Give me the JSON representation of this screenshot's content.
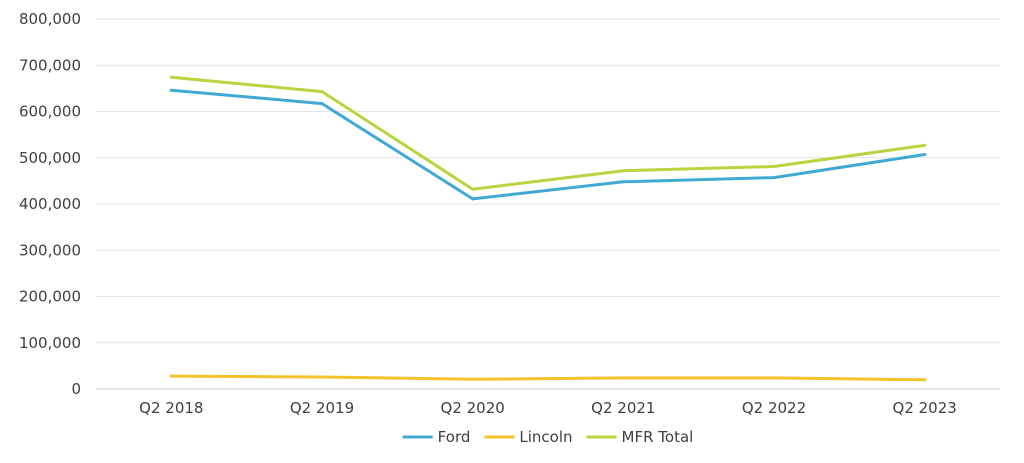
{
  "chart_data": {
    "type": "line",
    "categories": [
      "Q2 2018",
      "Q2 2019",
      "Q2 2020",
      "Q2 2021",
      "Q2 2022",
      "Q2 2023"
    ],
    "series": [
      {
        "name": "Ford",
        "color": "#3fa9d4",
        "values": [
          646000,
          617000,
          411000,
          448000,
          457000,
          507000
        ]
      },
      {
        "name": "Lincoln",
        "color": "#f5c22b",
        "values": [
          28000,
          26000,
          21000,
          24000,
          24000,
          20000
        ]
      },
      {
        "name": "MFR Total",
        "color": "#b8d43f",
        "values": [
          674000,
          643000,
          432000,
          472000,
          481000,
          527000
        ]
      }
    ],
    "ylim": [
      0,
      800000
    ],
    "yticks": [
      "0",
      "100,000",
      "200,000",
      "300,000",
      "400,000",
      "500,000",
      "600,000",
      "700,000",
      "800,000"
    ],
    "ytick_values": [
      0,
      100000,
      200000,
      300000,
      400000,
      500000,
      600000,
      700000,
      800000
    ],
    "grid": true,
    "legend_position": "bottom",
    "title": "",
    "xlabel": "",
    "ylabel": ""
  }
}
